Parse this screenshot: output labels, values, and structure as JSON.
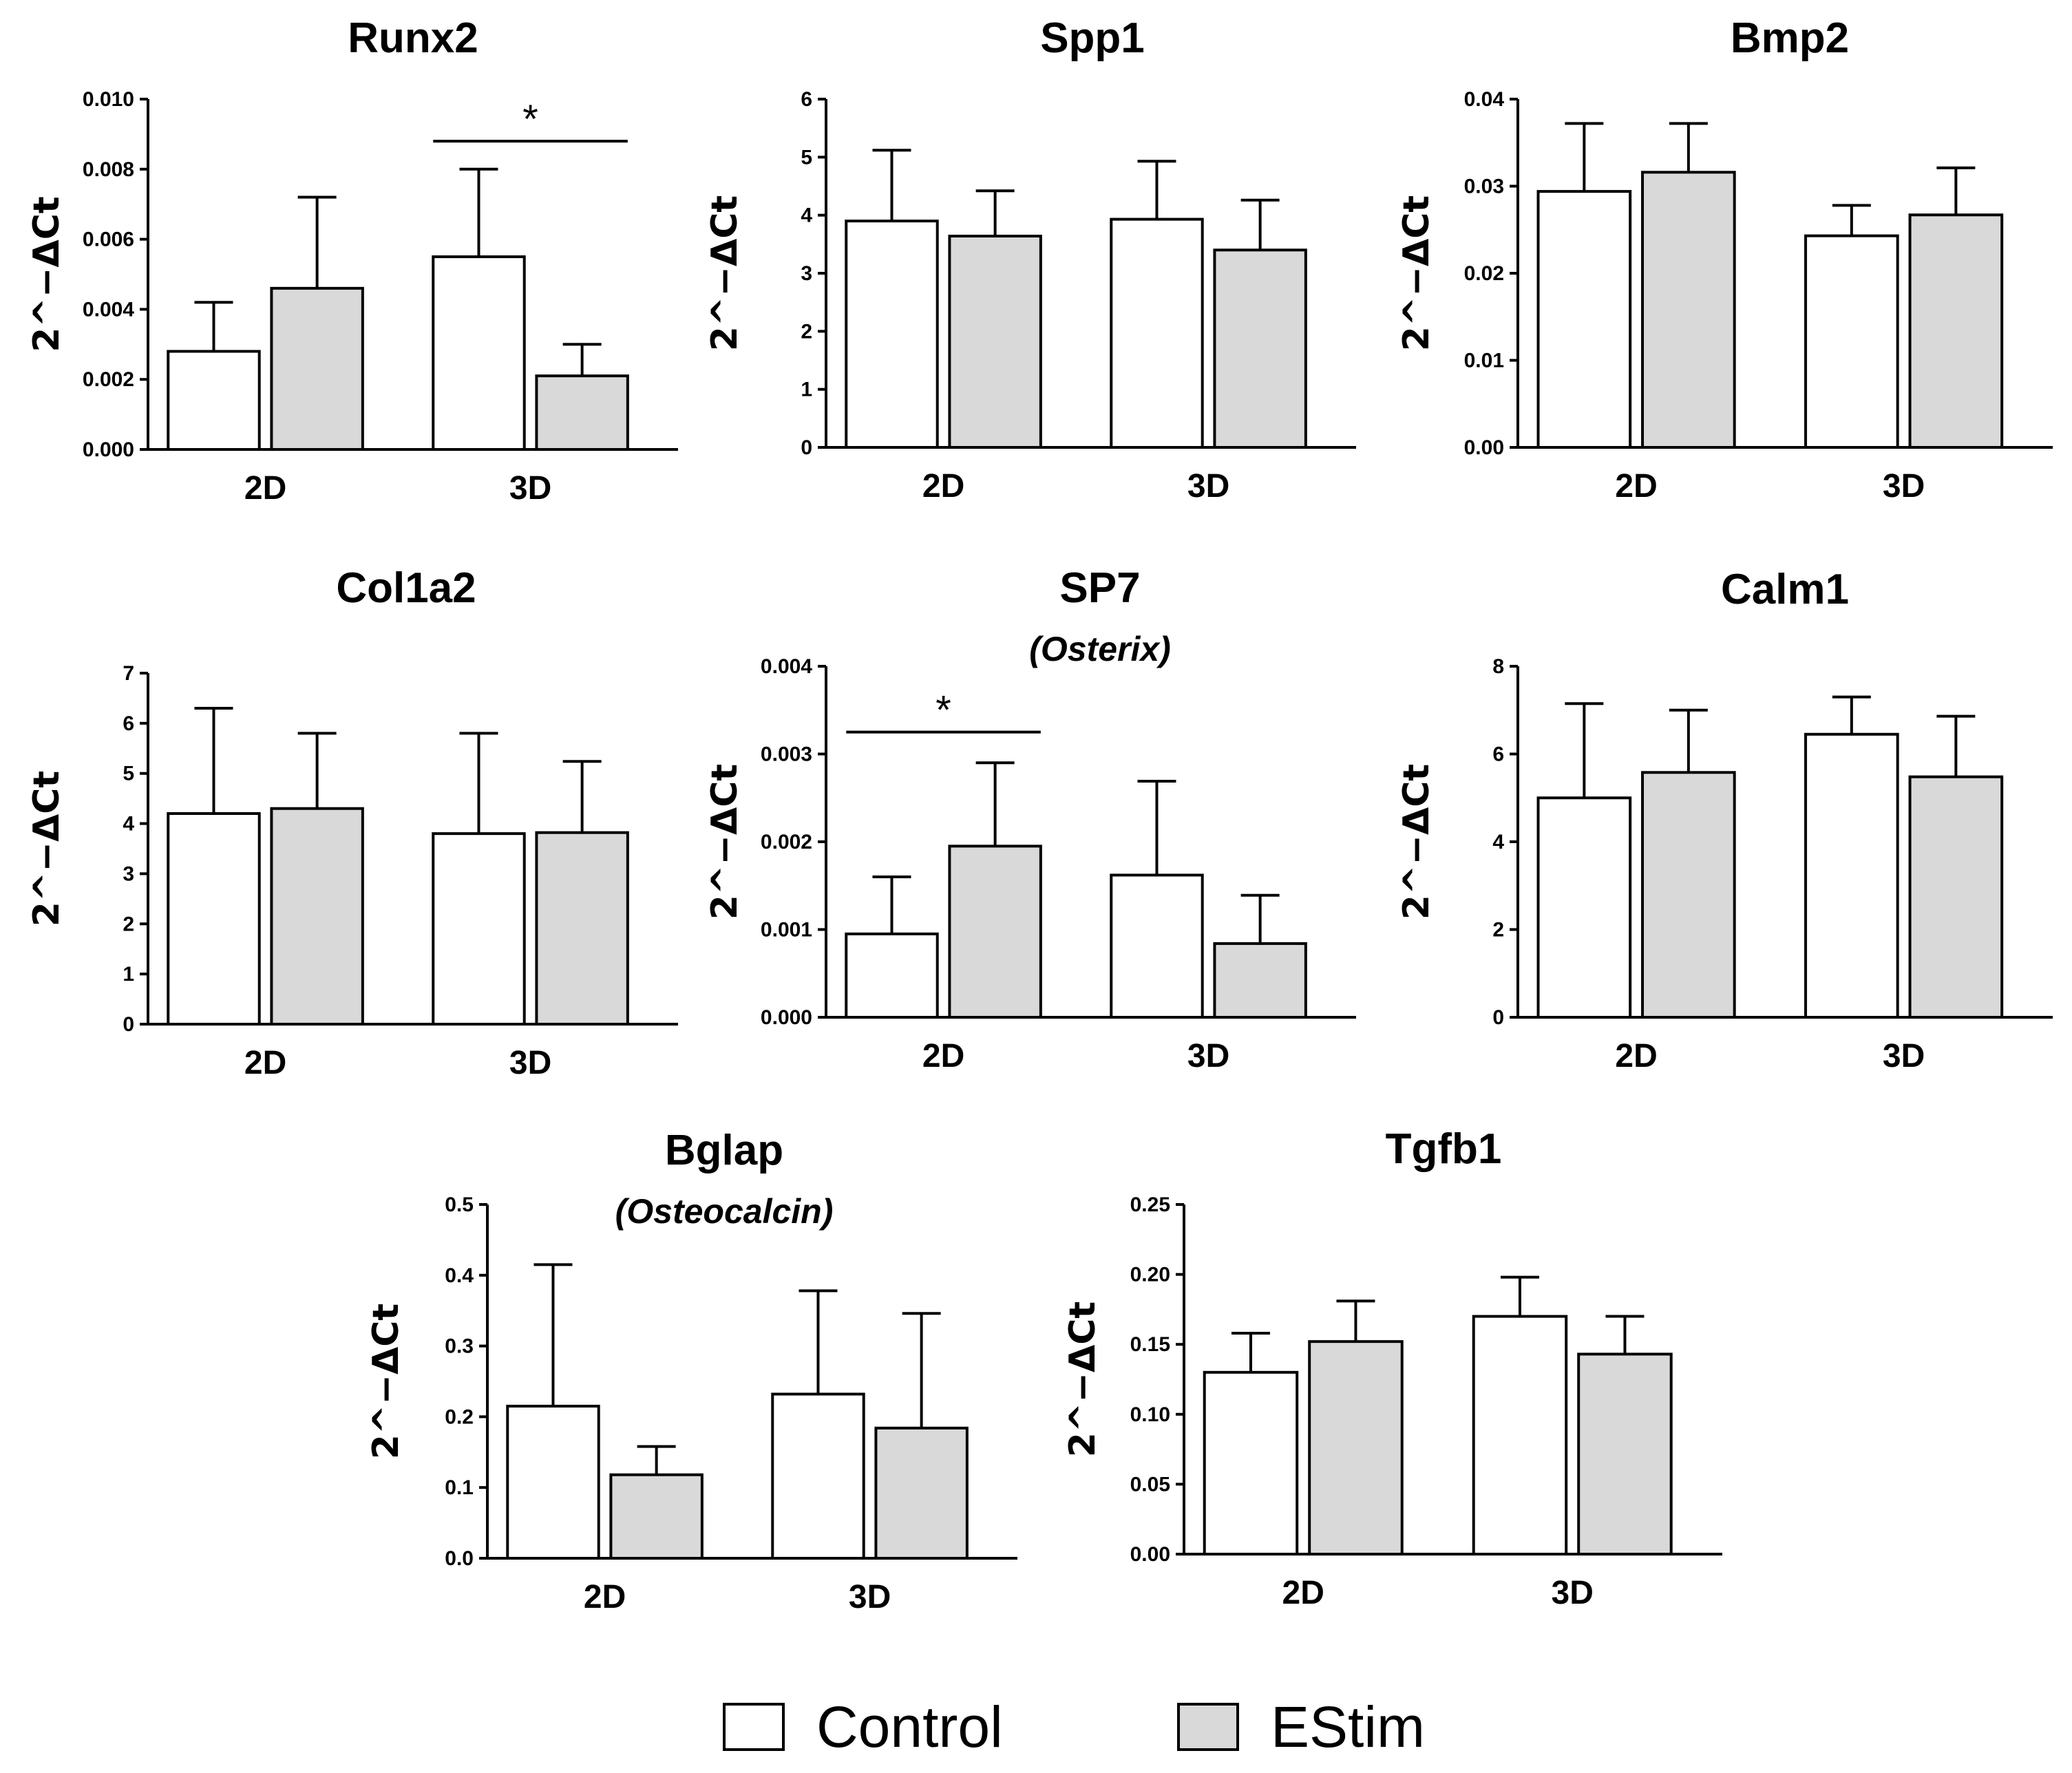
{
  "colors": {
    "control": "#ffffff",
    "estim": "#d9d9d9",
    "axis": "#000000"
  },
  "legend": {
    "items": [
      {
        "label": "Control",
        "series": "control"
      },
      {
        "label": "EStim",
        "series": "estim"
      }
    ]
  },
  "chart_data": [
    {
      "id": "runx2",
      "type": "bar",
      "title": "Runx2",
      "subtitle": "",
      "ylabel": "2^−ΔCt",
      "categories": [
        "2D",
        "3D"
      ],
      "ylim": [
        0,
        0.01
      ],
      "yticks": [
        "0.000",
        "0.002",
        "0.004",
        "0.006",
        "0.008",
        "0.010"
      ],
      "series": [
        {
          "name": "Control",
          "color": "#ffffff",
          "values": [
            0.0028,
            0.0055
          ],
          "errors": [
            0.0014,
            0.0025
          ]
        },
        {
          "name": "EStim",
          "color": "#d9d9d9",
          "values": [
            0.0046,
            0.0021
          ],
          "errors": [
            0.0026,
            0.0009
          ]
        }
      ],
      "significance": [
        {
          "label": "*",
          "from": "3D-Control",
          "to": "3D-EStim",
          "y": 0.0088
        }
      ]
    },
    {
      "id": "spp1",
      "type": "bar",
      "title": "Spp1",
      "subtitle": "",
      "ylabel": "2^−ΔCt",
      "categories": [
        "2D",
        "3D"
      ],
      "ylim": [
        0,
        6
      ],
      "yticks": [
        "0",
        "1",
        "2",
        "3",
        "4",
        "5",
        "6"
      ],
      "series": [
        {
          "name": "Control",
          "color": "#ffffff",
          "values": [
            3.9,
            3.93
          ],
          "errors": [
            1.22,
            1.0
          ]
        },
        {
          "name": "EStim",
          "color": "#d9d9d9",
          "values": [
            3.64,
            3.4
          ],
          "errors": [
            0.78,
            0.86
          ]
        }
      ],
      "significance": []
    },
    {
      "id": "bmp2",
      "type": "bar",
      "title": "Bmp2",
      "subtitle": "",
      "ylabel": "2^−ΔCt",
      "categories": [
        "2D",
        "3D"
      ],
      "ylim": [
        0,
        0.04
      ],
      "yticks": [
        "0.00",
        "0.01",
        "0.02",
        "0.03",
        "0.04"
      ],
      "series": [
        {
          "name": "Control",
          "color": "#ffffff",
          "values": [
            0.0294,
            0.0243
          ],
          "errors": [
            0.0078,
            0.0035
          ]
        },
        {
          "name": "EStim",
          "color": "#d9d9d9",
          "values": [
            0.0316,
            0.0267
          ],
          "errors": [
            0.0056,
            0.0054
          ]
        }
      ],
      "significance": []
    },
    {
      "id": "col1a2",
      "type": "bar",
      "title": "Col1a2",
      "subtitle": "",
      "ylabel": "2^−ΔCt",
      "categories": [
        "2D",
        "3D"
      ],
      "ylim": [
        0,
        7
      ],
      "yticks": [
        "0",
        "1",
        "2",
        "3",
        "4",
        "5",
        "6",
        "7"
      ],
      "series": [
        {
          "name": "Control",
          "color": "#ffffff",
          "values": [
            4.2,
            3.8
          ],
          "errors": [
            2.1,
            2.0
          ]
        },
        {
          "name": "EStim",
          "color": "#d9d9d9",
          "values": [
            4.3,
            3.82
          ],
          "errors": [
            1.5,
            1.42
          ]
        }
      ],
      "significance": []
    },
    {
      "id": "sp7",
      "type": "bar",
      "title": "SP7",
      "subtitle": "(Osterix)",
      "ylabel": "2^−ΔCt",
      "categories": [
        "2D",
        "3D"
      ],
      "ylim": [
        0,
        0.004
      ],
      "yticks": [
        "0.000",
        "0.001",
        "0.002",
        "0.003",
        "0.004"
      ],
      "series": [
        {
          "name": "Control",
          "color": "#ffffff",
          "values": [
            0.00095,
            0.00162
          ],
          "errors": [
            0.00065,
            0.00107
          ]
        },
        {
          "name": "EStim",
          "color": "#d9d9d9",
          "values": [
            0.00195,
            0.00084
          ],
          "errors": [
            0.00095,
            0.00055
          ]
        }
      ],
      "significance": [
        {
          "label": "*",
          "from": "2D-Control",
          "to": "2D-EStim",
          "y": 0.00325
        }
      ]
    },
    {
      "id": "calm1",
      "type": "bar",
      "title": "Calm1",
      "subtitle": "",
      "ylabel": "2^−ΔCt",
      "categories": [
        "2D",
        "3D"
      ],
      "ylim": [
        0,
        8
      ],
      "yticks": [
        "0",
        "2",
        "4",
        "6",
        "8"
      ],
      "series": [
        {
          "name": "Control",
          "color": "#ffffff",
          "values": [
            5.0,
            6.45
          ],
          "errors": [
            2.15,
            0.85
          ]
        },
        {
          "name": "EStim",
          "color": "#d9d9d9",
          "values": [
            5.58,
            5.48
          ],
          "errors": [
            1.42,
            1.38
          ]
        }
      ],
      "significance": []
    },
    {
      "id": "bglap",
      "type": "bar",
      "title": "Bglap",
      "subtitle": "(Osteocalcin)",
      "ylabel": "2^−ΔCt",
      "categories": [
        "2D",
        "3D"
      ],
      "ylim": [
        0,
        0.5
      ],
      "yticks": [
        "0.0",
        "0.1",
        "0.2",
        "0.3",
        "0.4",
        "0.5"
      ],
      "series": [
        {
          "name": "Control",
          "color": "#ffffff",
          "values": [
            0.215,
            0.232
          ],
          "errors": [
            0.2,
            0.146
          ]
        },
        {
          "name": "EStim",
          "color": "#d9d9d9",
          "values": [
            0.118,
            0.184
          ],
          "errors": [
            0.04,
            0.162
          ]
        }
      ],
      "significance": []
    },
    {
      "id": "tgfb1",
      "type": "bar",
      "title": "Tgfb1",
      "subtitle": "",
      "ylabel": "2^−ΔCt",
      "categories": [
        "2D",
        "3D"
      ],
      "ylim": [
        0,
        0.25
      ],
      "yticks": [
        "0.00",
        "0.05",
        "0.10",
        "0.15",
        "0.20",
        "0.25"
      ],
      "series": [
        {
          "name": "Control",
          "color": "#ffffff",
          "values": [
            0.13,
            0.17
          ],
          "errors": [
            0.028,
            0.028
          ]
        },
        {
          "name": "EStim",
          "color": "#d9d9d9",
          "values": [
            0.152,
            0.143
          ],
          "errors": [
            0.029,
            0.027
          ]
        }
      ],
      "significance": []
    }
  ]
}
